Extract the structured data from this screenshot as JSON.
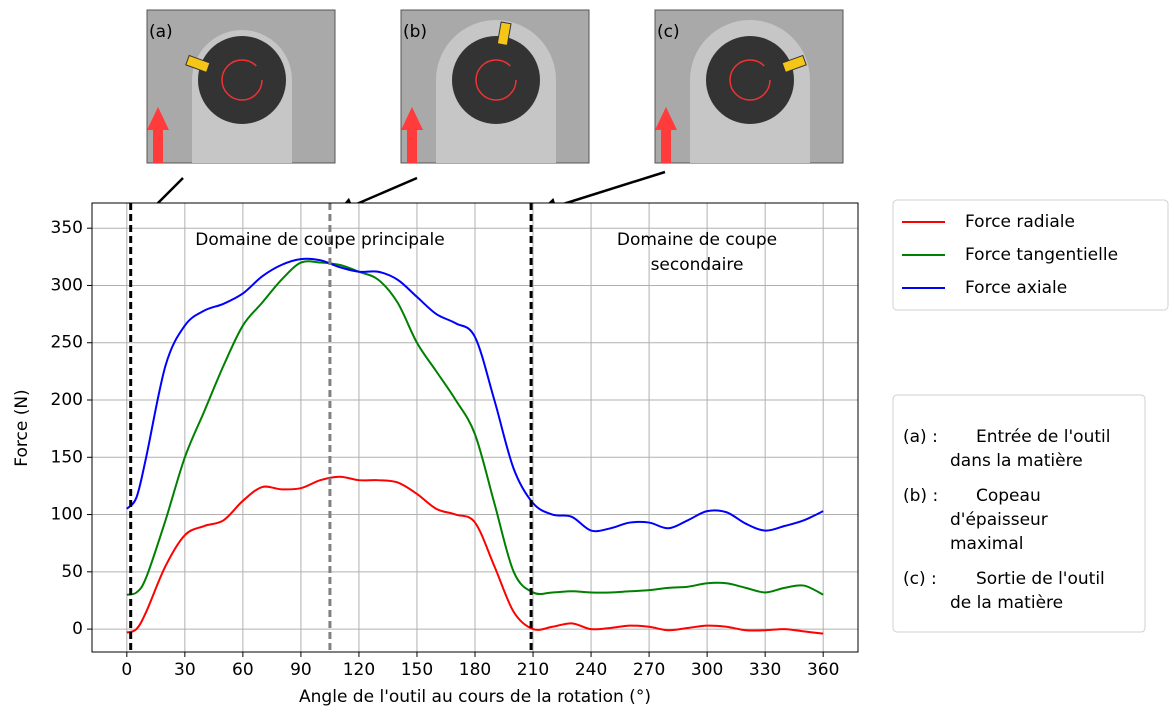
{
  "chart_data": {
    "type": "line",
    "xlabel": "Angle de l'outil au cours de la rotation (°)",
    "ylabel": "Force (N)",
    "xlim": [
      -18,
      378
    ],
    "ylim": [
      -20,
      372
    ],
    "xticks": [
      0,
      30,
      60,
      90,
      120,
      150,
      180,
      210,
      240,
      270,
      300,
      330,
      360
    ],
    "yticks": [
      0,
      50,
      100,
      150,
      200,
      250,
      300,
      350
    ],
    "grid": true,
    "x": [
      0,
      5,
      10,
      20,
      30,
      40,
      50,
      60,
      70,
      80,
      90,
      100,
      110,
      120,
      130,
      140,
      150,
      160,
      170,
      180,
      190,
      200,
      210,
      220,
      230,
      240,
      250,
      260,
      270,
      280,
      290,
      300,
      310,
      320,
      330,
      340,
      350,
      360
    ],
    "series": [
      {
        "name": "Force radiale",
        "color": "#ff0000",
        "values": [
          -3,
          0,
          15,
          55,
          82,
          90,
          95,
          112,
          124,
          122,
          123,
          130,
          133,
          130,
          130,
          128,
          118,
          105,
          100,
          93,
          55,
          15,
          0,
          2,
          5,
          0,
          1,
          3,
          2,
          -1,
          1,
          3,
          2,
          -1,
          -1,
          0,
          -2,
          -4
        ]
      },
      {
        "name": "Force tangentielle",
        "color": "#008000",
        "values": [
          30,
          32,
          45,
          95,
          150,
          190,
          230,
          265,
          285,
          305,
          320,
          320,
          318,
          312,
          305,
          285,
          250,
          225,
          200,
          170,
          110,
          50,
          32,
          32,
          33,
          32,
          32,
          33,
          34,
          36,
          37,
          40,
          40,
          36,
          32,
          36,
          38,
          30
        ]
      },
      {
        "name": "Force axiale",
        "color": "#0000ff",
        "values": [
          105,
          115,
          150,
          230,
          265,
          278,
          284,
          293,
          308,
          318,
          323,
          322,
          316,
          312,
          312,
          305,
          290,
          275,
          267,
          255,
          200,
          140,
          110,
          100,
          98,
          86,
          88,
          93,
          93,
          88,
          95,
          103,
          102,
          92,
          86,
          90,
          95,
          103
        ]
      }
    ],
    "vlines": [
      {
        "x": 2,
        "color": "#000000"
      },
      {
        "x": 105,
        "color": "#808080"
      },
      {
        "x": 209,
        "color": "#000000"
      }
    ],
    "annotations": [
      {
        "lines": [
          "Domaine de coupe principale"
        ]
      },
      {
        "lines": [
          "Domaine de coupe",
          "secondaire"
        ]
      }
    ],
    "insets": [
      "(a)",
      "(b)",
      "(c)"
    ],
    "notes": [
      {
        "key": "(a) :",
        "lines": [
          "Entrée de l'outil",
          "dans la matière"
        ]
      },
      {
        "key": "(b) :",
        "lines": [
          "Copeau",
          "d'épaisseur",
          "maximal"
        ]
      },
      {
        "key": "(c) :",
        "lines": [
          "Sortie de l'outil",
          "de la matière"
        ]
      }
    ]
  }
}
